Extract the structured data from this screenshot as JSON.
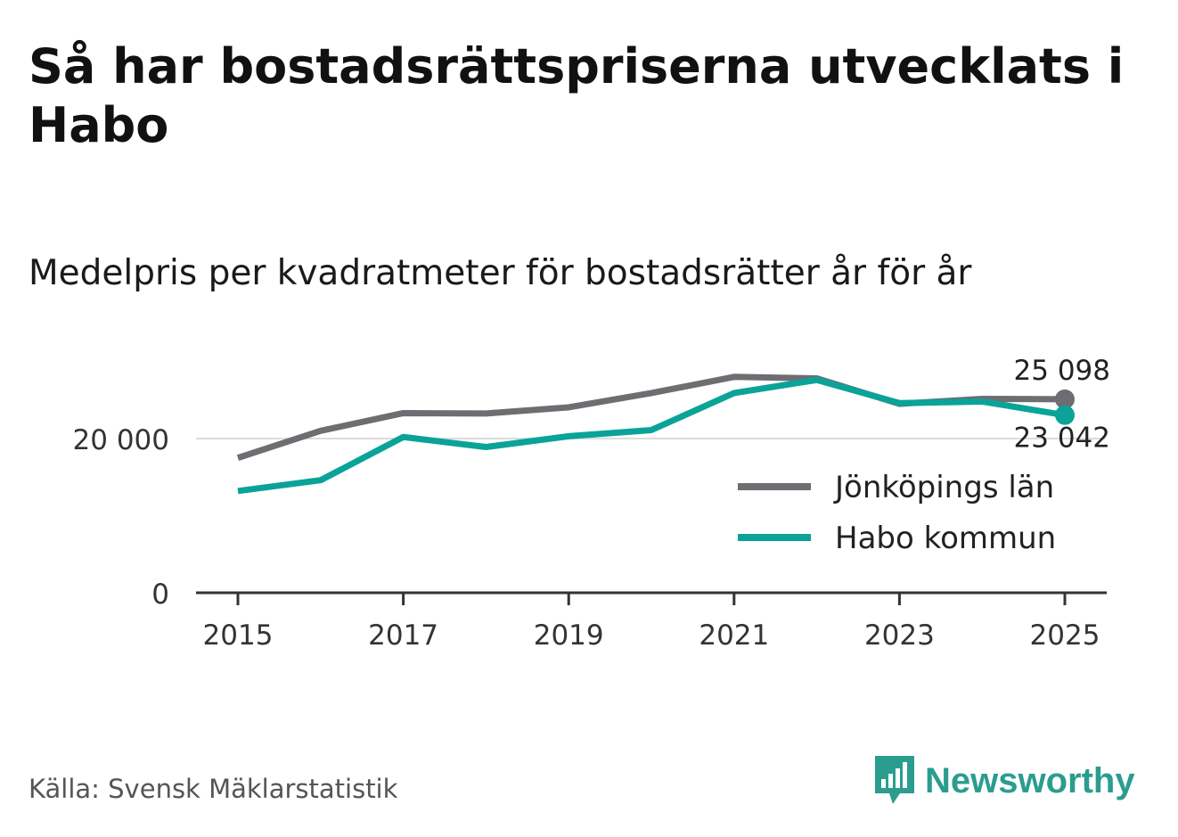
{
  "title": "Så har bostadsrättspriserna utvecklats i Habo",
  "subtitle": "Medelpris per kvadratmeter för bostadsrätter år för år",
  "source": "Källa: Svensk Mäklarstatistik",
  "brand": {
    "name": "Newsworthy",
    "logo_icon": "newsworthy-logo-icon",
    "color": "#2a9d8f"
  },
  "chart_data": {
    "type": "line",
    "title": "Medelpris per kvadratmeter för bostadsrätter år för år",
    "x": [
      2015,
      2016,
      2017,
      2018,
      2019,
      2020,
      2021,
      2022,
      2023,
      2024,
      2025
    ],
    "x_ticks": [
      "2015",
      "2017",
      "2019",
      "2021",
      "2023",
      "2025"
    ],
    "y_ticks": [
      0,
      20000
    ],
    "y_tick_labels": [
      "0",
      "20 000"
    ],
    "ylim": [
      0,
      30000
    ],
    "series": [
      {
        "name": "Jönköpings län",
        "color": "#6e6d72",
        "values": [
          17500,
          21000,
          23300,
          23250,
          24050,
          25900,
          28000,
          27800,
          24500,
          25150,
          25098
        ],
        "end_label": "25 098"
      },
      {
        "name": "Habo kommun",
        "color": "#0aa398",
        "values": [
          13200,
          14600,
          20200,
          18900,
          20300,
          21100,
          25900,
          27600,
          24600,
          24800,
          23042
        ],
        "end_label": "23 042"
      }
    ],
    "legend_position": "right",
    "grid": true
  }
}
